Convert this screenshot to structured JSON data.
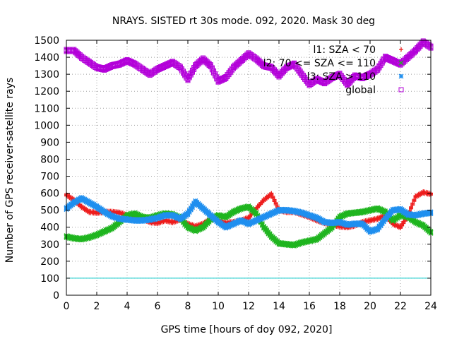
{
  "chart_data": {
    "type": "scatter",
    "title": "NRAYS. SISTED rt 30s mode. 092, 2020. Mask 30 deg",
    "xlabel": "GPS time [hours of doy 092, 2020]",
    "ylabel": "Number of GPS receiver-satellite rays",
    "xlim": [
      0,
      24
    ],
    "ylim": [
      0,
      1500
    ],
    "xticks": [
      0,
      2,
      4,
      6,
      8,
      10,
      12,
      14,
      16,
      18,
      20,
      22,
      24
    ],
    "yticks": [
      0,
      100,
      200,
      300,
      400,
      500,
      600,
      700,
      800,
      900,
      1000,
      1100,
      1200,
      1300,
      1400,
      1500
    ],
    "grid": true,
    "legend_position": "top-right",
    "threshold_line": {
      "y": 100,
      "color": "#00c8c8"
    },
    "series": [
      {
        "name": "l1: SZA < 70",
        "marker": "+",
        "color": "#ee1c1c",
        "x": [
          0.0,
          0.5,
          1.0,
          1.5,
          2.0,
          2.5,
          3.0,
          3.5,
          4.0,
          4.5,
          5.0,
          5.5,
          6.0,
          6.5,
          7.0,
          7.5,
          8.0,
          8.5,
          9.0,
          9.5,
          10.0,
          10.5,
          11.0,
          11.5,
          12.0,
          12.5,
          13.0,
          13.5,
          14.0,
          14.5,
          15.0,
          15.5,
          16.0,
          16.5,
          17.0,
          17.5,
          18.0,
          18.5,
          19.0,
          19.5,
          20.0,
          20.5,
          21.0,
          21.5,
          22.0,
          22.5,
          23.0,
          23.5,
          24.0
        ],
        "y": [
          590,
          560,
          520,
          490,
          485,
          490,
          490,
          485,
          470,
          455,
          450,
          430,
          425,
          440,
          430,
          445,
          420,
          405,
          420,
          450,
          440,
          425,
          430,
          440,
          455,
          510,
          560,
          595,
          500,
          490,
          490,
          475,
          460,
          440,
          425,
          415,
          405,
          400,
          410,
          430,
          440,
          450,
          470,
          420,
          400,
          470,
          580,
          605,
          595
        ]
      },
      {
        "name": "l2: 70 <= SZA <= 110",
        "marker": "x",
        "color": "#1fb51f",
        "x": [
          0.0,
          0.5,
          1.0,
          1.5,
          2.0,
          2.5,
          3.0,
          3.5,
          4.0,
          4.5,
          5.0,
          5.5,
          6.0,
          6.5,
          7.0,
          7.5,
          8.0,
          8.5,
          9.0,
          9.5,
          10.0,
          10.5,
          11.0,
          11.5,
          12.0,
          12.5,
          13.0,
          13.5,
          14.0,
          14.5,
          15.0,
          15.5,
          16.0,
          16.5,
          17.0,
          17.5,
          18.0,
          18.5,
          19.0,
          19.5,
          20.0,
          20.5,
          21.0,
          21.5,
          22.0,
          22.5,
          23.0,
          23.5,
          24.0
        ],
        "y": [
          345,
          335,
          330,
          340,
          355,
          375,
          395,
          430,
          470,
          480,
          460,
          455,
          470,
          480,
          475,
          455,
          400,
          380,
          400,
          445,
          470,
          460,
          490,
          510,
          520,
          480,
          400,
          345,
          305,
          300,
          295,
          310,
          320,
          330,
          365,
          400,
          460,
          480,
          485,
          490,
          500,
          510,
          490,
          440,
          470,
          460,
          430,
          410,
          370
        ]
      },
      {
        "name": "l3: SZA > 110",
        "marker": "*",
        "color": "#1f8fef",
        "x": [
          0.0,
          0.5,
          1.0,
          1.5,
          2.0,
          2.5,
          3.0,
          3.5,
          4.0,
          4.5,
          5.0,
          5.5,
          6.0,
          6.5,
          7.0,
          7.5,
          8.0,
          8.5,
          9.0,
          9.5,
          10.0,
          10.5,
          11.0,
          11.5,
          12.0,
          12.5,
          13.0,
          13.5,
          14.0,
          14.5,
          15.0,
          15.5,
          16.0,
          16.5,
          17.0,
          17.5,
          18.0,
          18.5,
          19.0,
          19.5,
          20.0,
          20.5,
          21.0,
          21.5,
          22.0,
          22.5,
          23.0,
          23.5,
          24.0
        ],
        "y": [
          510,
          545,
          570,
          545,
          520,
          490,
          465,
          450,
          445,
          440,
          440,
          445,
          455,
          470,
          470,
          450,
          480,
          550,
          510,
          470,
          430,
          400,
          420,
          440,
          420,
          440,
          460,
          480,
          500,
          500,
          495,
          485,
          470,
          455,
          430,
          425,
          430,
          415,
          420,
          420,
          375,
          390,
          450,
          500,
          505,
          475,
          470,
          480,
          485
        ]
      },
      {
        "name": "global",
        "marker": "square",
        "color": "#b300d9",
        "x": [
          0.0,
          0.5,
          1.0,
          1.5,
          2.0,
          2.5,
          3.0,
          3.5,
          4.0,
          4.5,
          5.0,
          5.5,
          6.0,
          6.5,
          7.0,
          7.5,
          8.0,
          8.5,
          9.0,
          9.5,
          10.0,
          10.5,
          11.0,
          11.5,
          12.0,
          12.5,
          13.0,
          13.5,
          14.0,
          14.5,
          15.0,
          15.5,
          16.0,
          16.5,
          17.0,
          17.5,
          18.0,
          18.5,
          19.0,
          19.5,
          20.0,
          20.5,
          21.0,
          21.5,
          22.0,
          22.5,
          23.0,
          23.5,
          24.0
        ],
        "y": [
          1440,
          1440,
          1400,
          1370,
          1340,
          1330,
          1350,
          1360,
          1380,
          1360,
          1330,
          1300,
          1330,
          1350,
          1370,
          1340,
          1270,
          1350,
          1390,
          1350,
          1260,
          1280,
          1340,
          1380,
          1420,
          1390,
          1350,
          1340,
          1290,
          1340,
          1360,
          1300,
          1240,
          1270,
          1250,
          1280,
          1300,
          1240,
          1290,
          1280,
          1300,
          1330,
          1400,
          1380,
          1360,
          1400,
          1440,
          1490,
          1460
        ]
      }
    ]
  }
}
